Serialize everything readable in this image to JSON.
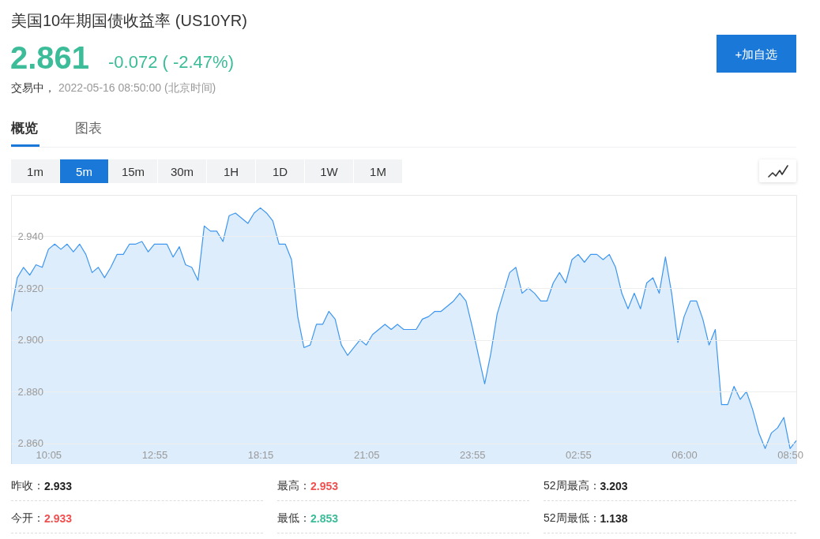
{
  "chart_data": {
    "type": "area",
    "title": "美国10年期国债收益率 (US10YR)",
    "annotations": [
      "2.861",
      "-0.072 ( -2.47%)",
      "交易中，",
      "2022-05-16 08:50:00 (北京时间)",
      "+加自选",
      "概览",
      "图表",
      "1m",
      "5m",
      "15m",
      "30m",
      "1H",
      "1D",
      "1W",
      "1M",
      "昨收：",
      "2.933",
      "最高：",
      "2.953",
      "52周最高：",
      "3.203",
      "今开：",
      "2.933",
      "最低：",
      "2.853",
      "52周最低：",
      "1.138"
    ],
    "categories": [
      null,
      null,
      null,
      null,
      null,
      null,
      "10:05",
      null,
      null,
      null,
      null,
      null,
      null,
      null,
      null,
      null,
      null,
      null,
      null,
      null,
      null,
      null,
      null,
      "12:55",
      null,
      null,
      null,
      null,
      null,
      null,
      null,
      null,
      null,
      null,
      null,
      null,
      null,
      null,
      null,
      null,
      "18:15",
      null,
      null,
      null,
      null,
      null,
      null,
      null,
      null,
      null,
      null,
      null,
      null,
      null,
      null,
      null,
      null,
      "21:05",
      null,
      null,
      null,
      null,
      null,
      null,
      null,
      null,
      null,
      null,
      null,
      null,
      null,
      null,
      null,
      null,
      "23:55",
      null,
      null,
      null,
      null,
      null,
      null,
      null,
      null,
      null,
      null,
      null,
      null,
      null,
      null,
      null,
      null,
      "02:55",
      null,
      null,
      null,
      null,
      null,
      null,
      null,
      null,
      null,
      null,
      null,
      null,
      null,
      null,
      null,
      null,
      "06:00",
      null,
      null,
      null,
      null,
      null,
      null,
      null,
      null,
      null,
      null,
      null,
      null,
      null,
      null,
      null,
      null,
      "08:50",
      null
    ],
    "values": [
      2.911,
      2.924,
      2.928,
      2.925,
      2.929,
      2.928,
      2.935,
      2.937,
      2.935,
      2.937,
      2.934,
      2.937,
      2.933,
      2.926,
      2.928,
      2.924,
      2.928,
      2.933,
      2.933,
      2.937,
      2.937,
      2.938,
      2.934,
      2.937,
      2.937,
      2.937,
      2.932,
      2.936,
      2.929,
      2.928,
      2.923,
      2.944,
      2.942,
      2.942,
      2.938,
      2.948,
      2.949,
      2.947,
      2.945,
      2.949,
      2.951,
      2.949,
      2.946,
      2.937,
      2.937,
      2.931,
      2.909,
      2.897,
      2.898,
      2.906,
      2.906,
      2.911,
      2.908,
      2.898,
      2.894,
      2.897,
      2.9,
      2.898,
      2.902,
      2.904,
      2.906,
      2.904,
      2.906,
      2.904,
      2.904,
      2.904,
      2.908,
      2.909,
      2.911,
      2.911,
      2.913,
      2.915,
      2.918,
      2.915,
      2.905,
      2.894,
      2.883,
      2.895,
      2.91,
      2.918,
      2.926,
      2.928,
      2.918,
      2.92,
      2.918,
      2.915,
      2.915,
      2.922,
      2.926,
      2.922,
      2.931,
      2.933,
      2.93,
      2.933,
      2.933,
      2.931,
      2.933,
      2.928,
      2.918,
      2.912,
      2.918,
      2.912,
      2.922,
      2.924,
      2.918,
      2.932,
      2.918,
      2.899,
      2.909,
      2.915,
      2.915,
      2.908,
      2.898,
      2.904,
      2.875,
      2.875,
      2.882,
      2.877,
      2.88,
      2.873,
      2.864,
      2.858,
      2.864,
      2.866,
      2.87,
      2.858,
      2.861
    ],
    "color": "#3d96f0",
    "ylim": [
      2.852,
      2.956
    ],
    "yticks": [
      {
        "value": 2.86,
        "label": "2.860"
      },
      {
        "value": 2.88,
        "label": "2.880"
      },
      {
        "value": 2.9,
        "label": "2.900"
      },
      {
        "value": 2.92,
        "label": "2.920"
      },
      {
        "value": 2.94,
        "label": "2.940"
      }
    ],
    "grid": "y"
  }
}
